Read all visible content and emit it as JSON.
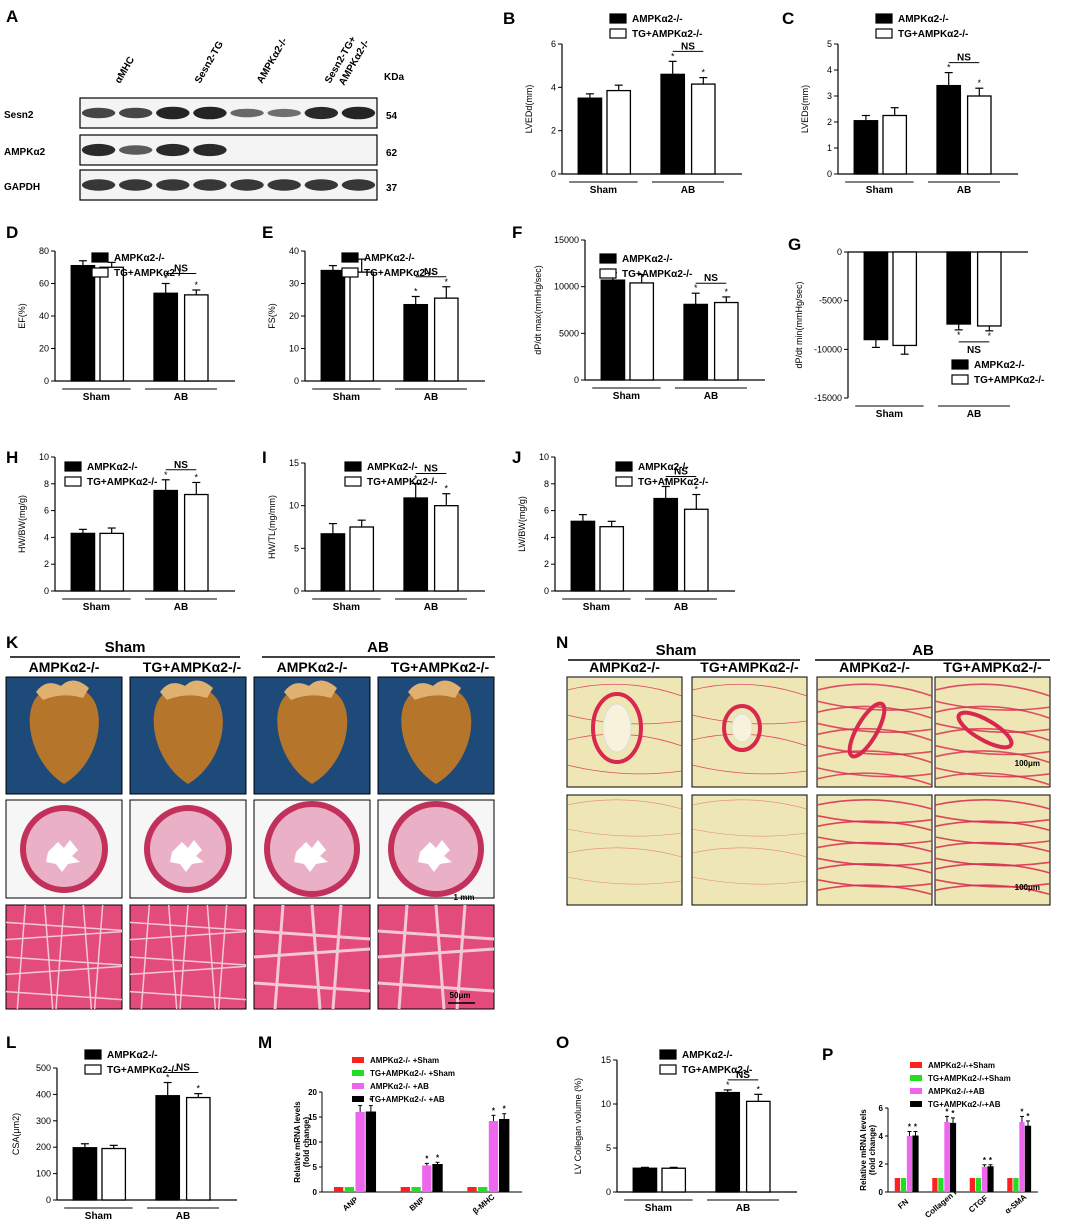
{
  "panel_labels": [
    "A",
    "B",
    "C",
    "D",
    "E",
    "F",
    "G",
    "H",
    "I",
    "J",
    "K",
    "L",
    "M",
    "N",
    "O",
    "P"
  ],
  "colors": {
    "black": "#000000",
    "white": "#ffffff",
    "red": "#ff2020",
    "green": "#22dd22",
    "magenta": "#ee66ee",
    "heart_bg": "#1e4a7a",
    "heart": "#b5752a",
    "he_pink": "#e34c7a",
    "picro_bg": "#efe6b5",
    "picro_red": "#d8284e"
  },
  "blot": {
    "lanes": [
      "αMHC",
      "Sesn2-TG",
      "AMPKα2-/-",
      "Sesn2-TG+\nAMPKα2-/-"
    ],
    "kda_label": "KDa",
    "rows": [
      {
        "name": "Sesn2",
        "kda": "54",
        "intensity": [
          0.7,
          0.7,
          0.95,
          0.95,
          0.45,
          0.4,
          0.9,
          0.95
        ]
      },
      {
        "name": "AMPKα2",
        "kda": "62",
        "intensity": [
          0.9,
          0.55,
          0.9,
          0.9,
          0,
          0,
          0,
          0
        ]
      },
      {
        "name": "GAPDH",
        "kda": "37",
        "intensity": [
          0.8,
          0.8,
          0.8,
          0.8,
          0.8,
          0.8,
          0.8,
          0.8
        ]
      }
    ]
  },
  "groups": [
    "Sham",
    "AB"
  ],
  "legend2": [
    "AMPKα2-/-",
    "TG+AMPKα2-/-"
  ],
  "legend4": [
    "AMPKα2-/- +Sham",
    "TG+AMPKα2-/- +Sham",
    "AMPKα2-/- +AB",
    "TG+AMPKα2-/- +AB"
  ],
  "legend4p": [
    "AMPKα2-/-+Sham",
    "TG+AMPKα2-/-+Sham",
    "AMPKα2-/-+AB",
    "TG+AMPKα2-/-+AB"
  ],
  "ns": "NS",
  "star": "*",
  "chart_data": [
    {
      "panel": "B",
      "type": "bar",
      "ylabel": "LVEDd(mm)",
      "ylim": [
        0,
        6
      ],
      "yticks": [
        0,
        2,
        4,
        6
      ],
      "series": [
        {
          "name": "AMPKα2-/-",
          "values": [
            3.5,
            4.6
          ],
          "err": [
            0.2,
            0.6
          ]
        },
        {
          "name": "TG+AMPKα2-/-",
          "values": [
            3.85,
            4.15
          ],
          "err": [
            0.25,
            0.3
          ]
        }
      ]
    },
    {
      "panel": "C",
      "type": "bar",
      "ylabel": "LVEDs(mm)",
      "ylim": [
        0,
        5
      ],
      "yticks": [
        0,
        1,
        2,
        3,
        4,
        5
      ],
      "series": [
        {
          "name": "AMPKα2-/-",
          "values": [
            2.05,
            3.4
          ],
          "err": [
            0.2,
            0.5
          ]
        },
        {
          "name": "TG+AMPKα2-/-",
          "values": [
            2.25,
            3.0
          ],
          "err": [
            0.3,
            0.3
          ]
        }
      ]
    },
    {
      "panel": "D",
      "type": "bar",
      "ylabel": "EF(%)",
      "ylim": [
        0,
        80
      ],
      "yticks": [
        0,
        20,
        40,
        60,
        80
      ],
      "series": [
        {
          "name": "AMPKα2-/-",
          "values": [
            71,
            54
          ],
          "err": [
            3,
            6
          ]
        },
        {
          "name": "TG+AMPKα2-/-",
          "values": [
            70,
            53
          ],
          "err": [
            3,
            3
          ]
        }
      ]
    },
    {
      "panel": "E",
      "type": "bar",
      "ylabel": "FS(%)",
      "ylim": [
        0,
        40
      ],
      "yticks": [
        0,
        10,
        20,
        30,
        40
      ],
      "series": [
        {
          "name": "AMPKα2-/-",
          "values": [
            34,
            23.5
          ],
          "err": [
            1.5,
            2.5
          ]
        },
        {
          "name": "TG+AMPKα2-/-",
          "values": [
            33.5,
            25.5
          ],
          "err": [
            4,
            3.5
          ]
        }
      ]
    },
    {
      "panel": "F",
      "type": "bar",
      "ylabel": "dP/dt max(mmHg/sec)",
      "ylim": [
        0,
        15000
      ],
      "yticks": [
        0,
        5000,
        10000,
        15000
      ],
      "series": [
        {
          "name": "AMPKα2-/-",
          "values": [
            10700,
            8100
          ],
          "err": [
            800,
            1200
          ]
        },
        {
          "name": "TG+AMPKα2-/-",
          "values": [
            10400,
            8300
          ],
          "err": [
            900,
            600
          ]
        }
      ]
    },
    {
      "panel": "G",
      "type": "bar",
      "ylabel": "dP/dt min(mmHg/sec)",
      "ylim": [
        -15000,
        0
      ],
      "yticks": [
        0,
        -5000,
        -10000,
        -15000
      ],
      "series": [
        {
          "name": "AMPKα2-/-",
          "values": [
            -9000,
            -7400
          ],
          "err": [
            800,
            600
          ]
        },
        {
          "name": "TG+AMPKα2-/-",
          "values": [
            -9600,
            -7600
          ],
          "err": [
            900,
            500
          ]
        }
      ]
    },
    {
      "panel": "H",
      "type": "bar",
      "ylabel": "HW/BW(mg/g)",
      "ylim": [
        0,
        10
      ],
      "yticks": [
        0,
        2,
        4,
        6,
        8,
        10
      ],
      "series": [
        {
          "name": "AMPKα2-/-",
          "values": [
            4.3,
            7.5
          ],
          "err": [
            0.3,
            0.8
          ]
        },
        {
          "name": "TG+AMPKα2-/-",
          "values": [
            4.3,
            7.2
          ],
          "err": [
            0.4,
            0.9
          ]
        }
      ]
    },
    {
      "panel": "I",
      "type": "bar",
      "ylabel": "HW/TL(mg/mm)",
      "ylim": [
        0,
        15
      ],
      "yticks": [
        0,
        5,
        10,
        15
      ],
      "series": [
        {
          "name": "AMPKα2-/-",
          "values": [
            6.7,
            10.9
          ],
          "err": [
            1.2,
            1.7
          ]
        },
        {
          "name": "TG+AMPKα2-/-",
          "values": [
            7.5,
            10.0
          ],
          "err": [
            0.8,
            1.4
          ]
        }
      ]
    },
    {
      "panel": "J",
      "type": "bar",
      "ylabel": "LW/BW(mg/g)",
      "ylim": [
        0,
        10
      ],
      "yticks": [
        0,
        2,
        4,
        6,
        8,
        10
      ],
      "series": [
        {
          "name": "AMPKα2-/-",
          "values": [
            5.2,
            6.9
          ],
          "err": [
            0.5,
            0.9
          ]
        },
        {
          "name": "TG+AMPKα2-/-",
          "values": [
            4.8,
            6.1
          ],
          "err": [
            0.4,
            1.1
          ]
        }
      ]
    },
    {
      "panel": "L",
      "type": "bar",
      "ylabel": "CSA(μm2)",
      "ylim": [
        0,
        500
      ],
      "yticks": [
        0,
        100,
        200,
        300,
        400,
        500
      ],
      "series": [
        {
          "name": "AMPKα2-/-",
          "values": [
            198,
            395
          ],
          "err": [
            15,
            50
          ]
        },
        {
          "name": "TG+AMPKα2-/-",
          "values": [
            195,
            388
          ],
          "err": [
            12,
            15
          ]
        }
      ]
    },
    {
      "panel": "O",
      "type": "bar",
      "ylabel": "LV Collegan volume (%)",
      "ylim": [
        0,
        15
      ],
      "yticks": [
        0,
        5,
        10,
        15
      ],
      "series": [
        {
          "name": "AMPKα2-/-",
          "values": [
            2.7,
            11.3
          ],
          "err": [
            0.1,
            0.3
          ]
        },
        {
          "name": "TG+AMPKα2-/-",
          "values": [
            2.7,
            10.3
          ],
          "err": [
            0.1,
            0.8
          ]
        }
      ]
    },
    {
      "panel": "M",
      "type": "bar",
      "ylabel": "Relative mRNA levels\n(fold change)",
      "ylim": [
        0,
        20
      ],
      "yticks": [
        0,
        5,
        10,
        15,
        20
      ],
      "categories": [
        "ANP",
        "BNP",
        "β-MHC"
      ],
      "series": [
        {
          "name": "AMPKα2-/- +Sham",
          "values": [
            1,
            1,
            1
          ]
        },
        {
          "name": "TG+AMPKα2-/- +Sham",
          "values": [
            1,
            1,
            1
          ]
        },
        {
          "name": "AMPKα2-/- +AB",
          "values": [
            16,
            5.3,
            14.2
          ]
        },
        {
          "name": "TG+AMPKα2-/- +AB",
          "values": [
            16,
            5.5,
            14.5
          ]
        }
      ]
    },
    {
      "panel": "P",
      "type": "bar",
      "ylabel": "Relative mRNA levels\n(fold change)",
      "ylim": [
        0,
        6
      ],
      "yticks": [
        0,
        2,
        4,
        6
      ],
      "categories": [
        "FN",
        "Collagen I",
        "CTGF",
        "α-SMA"
      ],
      "series": [
        {
          "name": "AMPKα2-/-+Sham",
          "values": [
            1,
            1,
            1,
            1
          ]
        },
        {
          "name": "TG+AMPKα2-/-+Sham",
          "values": [
            1,
            1,
            1,
            1
          ]
        },
        {
          "name": "AMPKα2-/-+AB",
          "values": [
            4,
            5,
            1.8,
            5
          ]
        },
        {
          "name": "TG+AMPKα2-/-+AB",
          "values": [
            4,
            4.9,
            1.8,
            4.7
          ]
        }
      ]
    }
  ],
  "histology_K": {
    "group_headers": [
      "Sham",
      "AB"
    ],
    "col_labels": [
      "AMPKα2-/-",
      "TG+AMPKα2-/-",
      "AMPKα2-/-",
      "TG+AMPKα2-/-"
    ],
    "scale_cross": "1 mm",
    "scale_he": "50μm"
  },
  "histology_N": {
    "group_headers": [
      "Sham",
      "AB"
    ],
    "col_labels": [
      "AMPKα2-/-",
      "TG+AMPKα2-/-",
      "AMPKα2-/-",
      "TG+AMPKα2-/-"
    ],
    "scale1": "100μm",
    "scale2": "100μm"
  }
}
